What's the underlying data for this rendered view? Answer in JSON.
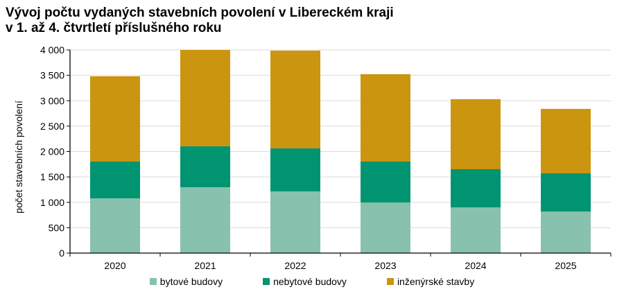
{
  "chart_data": {
    "type": "bar",
    "stacked": true,
    "title_lines": [
      "Vývoj počtu vydaných stavebních povolení v Libereckém kraji",
      "v 1. až 4. čtvrtletí příslušného roku"
    ],
    "xlabel": "",
    "ylabel": "počet stavebních povolení",
    "ylim": [
      0,
      4000
    ],
    "yticks": [
      0,
      500,
      1000,
      1500,
      2000,
      2500,
      3000,
      3500,
      4000
    ],
    "ytick_labels": [
      "0",
      "500",
      "1 000",
      "1 500",
      "2 000",
      "2 500",
      "3 000",
      "3 500",
      "4 000"
    ],
    "categories": [
      "2020",
      "2021",
      "2022",
      "2023",
      "2024",
      "2025"
    ],
    "grid": true,
    "legend_position": "bottom",
    "series": [
      {
        "name": "bytové budovy",
        "color": "#88c1ad",
        "values": [
          1078,
          1297,
          1215,
          996,
          901,
          819
        ]
      },
      {
        "name": "nebytové budovy",
        "color": "#009470",
        "values": [
          724,
          805,
          846,
          806,
          751,
          751
        ]
      },
      {
        "name": "inženýrské stavby",
        "color": "#cc9510",
        "values": [
          1679,
          1898,
          1925,
          1720,
          1378,
          1269
        ]
      }
    ]
  }
}
